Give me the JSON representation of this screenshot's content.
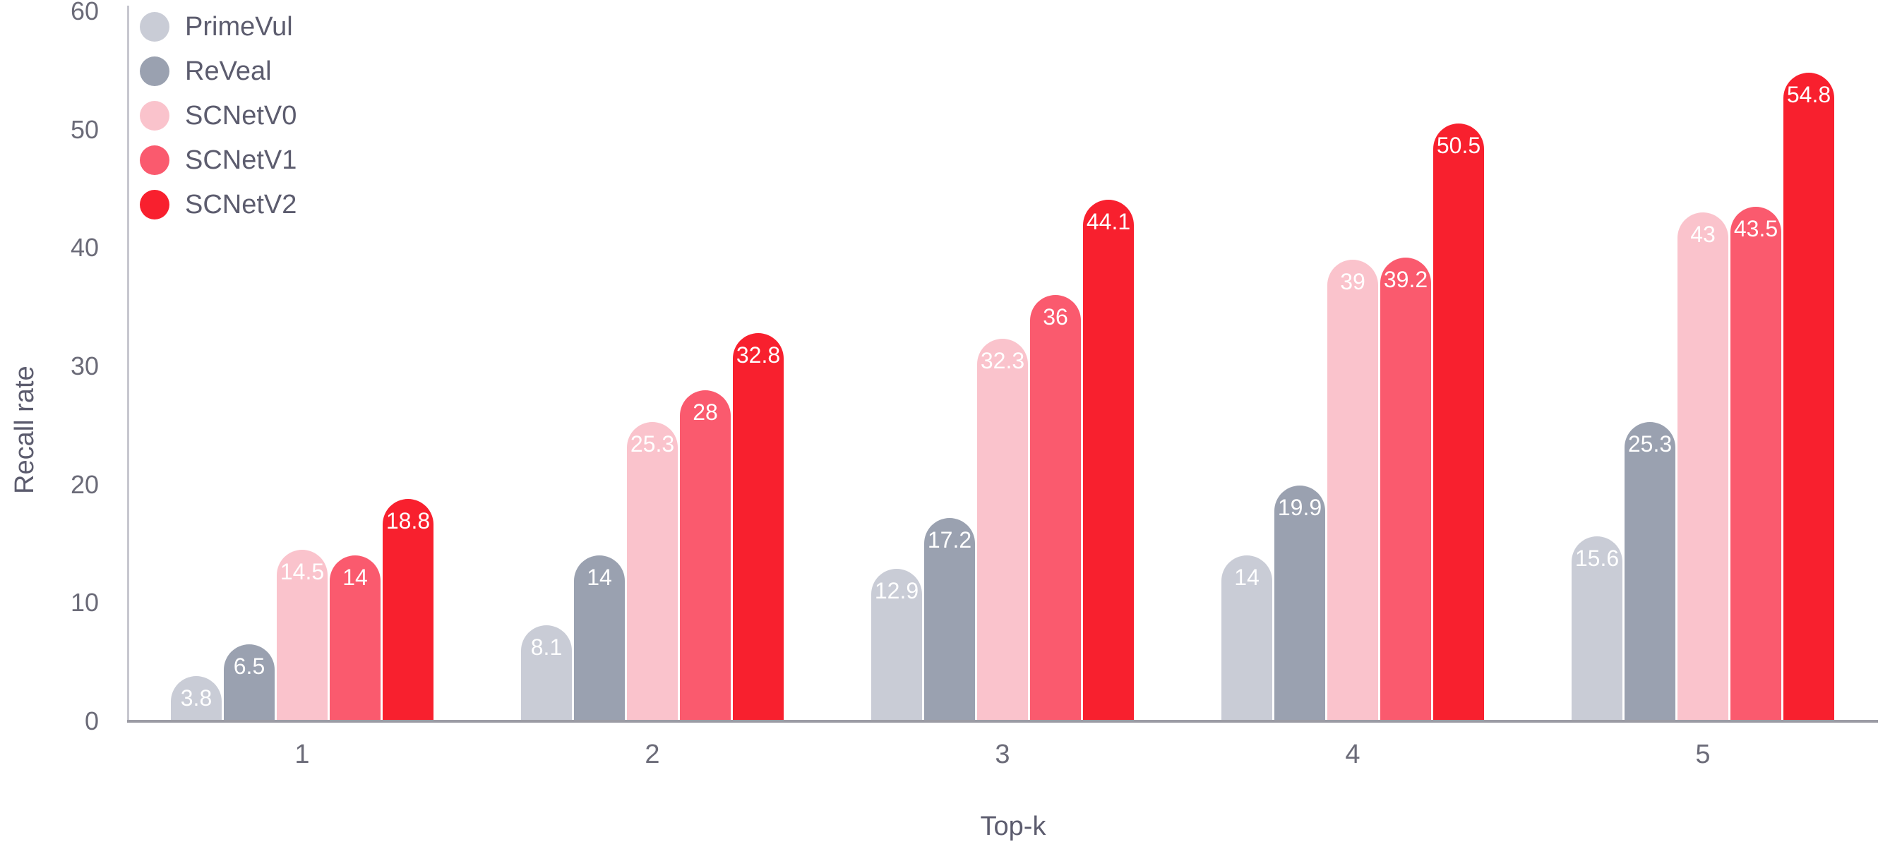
{
  "chart_data": {
    "type": "bar",
    "title": "",
    "xlabel": "Top-k",
    "ylabel": "Recall rate",
    "categories": [
      "1",
      "2",
      "3",
      "4",
      "5"
    ],
    "series": [
      {
        "name": "PrimeVul",
        "color": "#c9ccd6",
        "values": [
          3.8,
          8.1,
          12.9,
          14,
          15.6
        ]
      },
      {
        "name": "ReVeal",
        "color": "#9aa1b0",
        "values": [
          6.5,
          14,
          17.2,
          19.9,
          25.3
        ]
      },
      {
        "name": "SCNetV0",
        "color": "#fac3cc",
        "values": [
          14.5,
          25.3,
          32.3,
          39,
          43
        ]
      },
      {
        "name": "SCNetV1",
        "color": "#fa5a6e",
        "values": [
          14,
          28,
          36,
          39.2,
          43.5
        ]
      },
      {
        "name": "SCNetV2",
        "color": "#f8202e",
        "values": [
          18.8,
          32.8,
          44.1,
          50.5,
          54.8
        ]
      }
    ],
    "ylim": [
      0,
      60
    ],
    "yticks": [
      0,
      10,
      20,
      30,
      40,
      50,
      60
    ],
    "legend_position": "top-left",
    "grid": false,
    "bar_label_color": "#ffffff",
    "axis_color": "#9b9ba4",
    "text_color": "#5c5c6e"
  }
}
